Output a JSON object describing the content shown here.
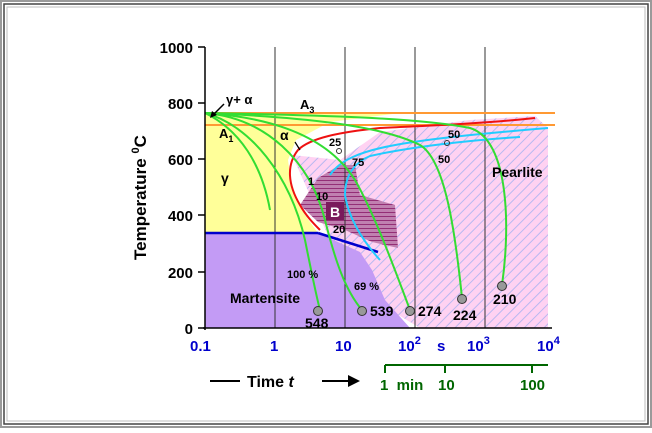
{
  "diagram": {
    "y_axis": {
      "label_main": "Temperature ",
      "label_sup": "0",
      "label_unit": "C",
      "ticks": [
        "1000",
        "800",
        "600",
        "400",
        "200",
        "0"
      ]
    },
    "x_axis": {
      "ticks": [
        "0.1",
        "1",
        "10",
        "10",
        "s",
        "10",
        "10"
      ],
      "tick_exponents": [
        "2",
        "3",
        "4"
      ],
      "time_label": "Time ",
      "time_var": "t",
      "minute_ticks": [
        "1  min",
        "10",
        "100"
      ]
    },
    "regions": {
      "gamma_alpha": "γ+ α",
      "a3": "A",
      "a3_sub": "3",
      "a1": "A",
      "a1_sub": "1",
      "alpha": "α",
      "gamma": "γ",
      "bainite": "B",
      "pearlite": "Pearlite",
      "martensite": "Martensite"
    },
    "curve_labels": {
      "c25": "25",
      "c75": "75",
      "c50a": "50",
      "c50b": "50",
      "c1": "1",
      "c10": "10",
      "c20": "20",
      "m100": "100 %",
      "m69": "69 %"
    },
    "hardness": [
      "548",
      "539",
      "274",
      "224",
      "210"
    ]
  },
  "colors": {
    "austenite": "#ffff99",
    "martensite": "#c39bf5",
    "pearlite": "#ffc8f0",
    "bainite": "#a0307a",
    "cooling_curve": "#33dd33",
    "transform_start": "#ee1111",
    "transform_end": "#22ccff",
    "ms_line": "#0000cc",
    "axis_blue": "#0000cc",
    "axis_green": "#006600"
  }
}
